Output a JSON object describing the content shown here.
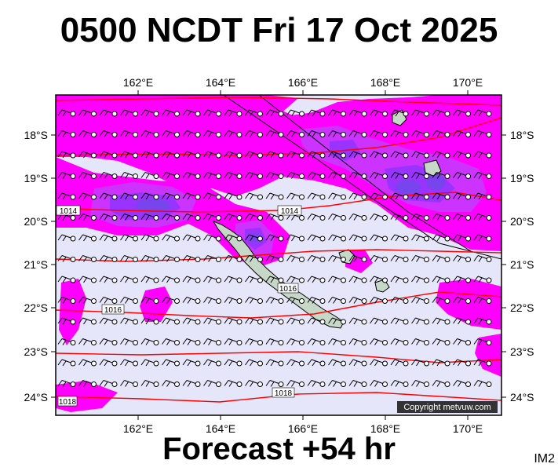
{
  "header": {
    "title": "0500 NCDT Fri 17 Oct 2025"
  },
  "footer": {
    "forecast": "Forecast +54 hr",
    "tag": "IM2"
  },
  "map": {
    "copyright": "Copyright metvuw.com",
    "lon_labels": [
      "162°E",
      "164°E",
      "166°E",
      "168°E",
      "170°E"
    ],
    "lat_labels": [
      "18°S",
      "19°S",
      "20°S",
      "21°S",
      "22°S",
      "23°S",
      "24°S"
    ],
    "isobar_labels": [
      "1014",
      "1014",
      "1016",
      "1016",
      "1018",
      "1018"
    ],
    "colors": {
      "background": "#e6e6fa",
      "rain_light": "#ff00ff",
      "rain_medium": "#cc33ff",
      "rain_heavy": "#9933ff",
      "rain_core": "#7744ee",
      "isobar": "#ff0000",
      "land": "#c8d8c8"
    }
  }
}
